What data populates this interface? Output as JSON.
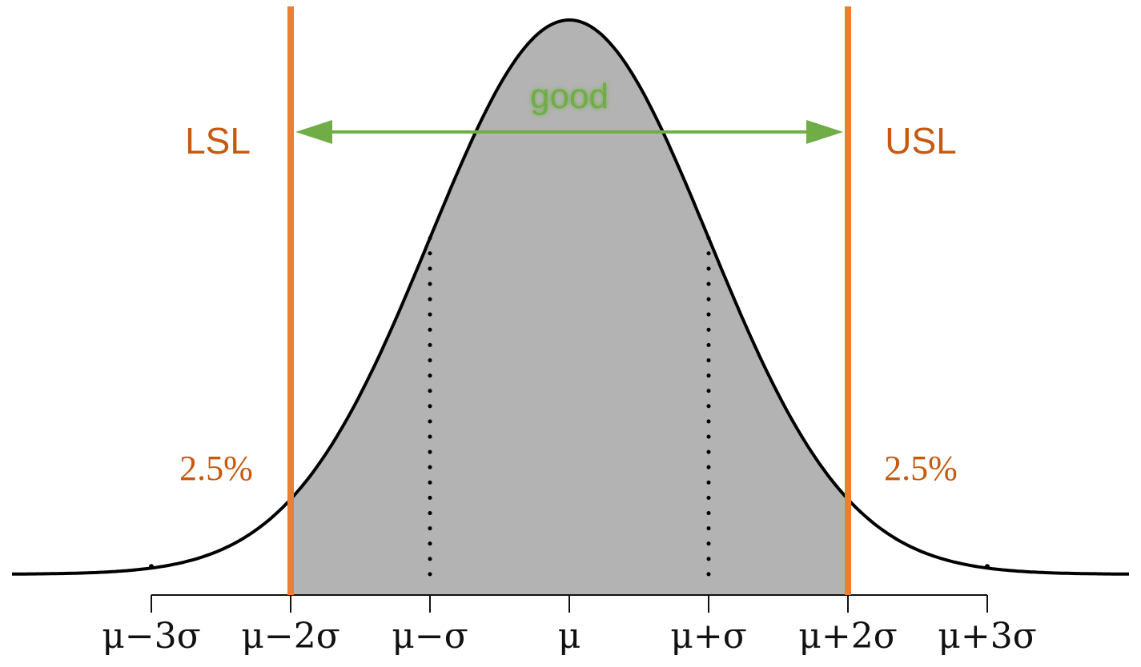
{
  "diagram": {
    "type": "normal-distribution-spec-limits",
    "labels": {
      "lsl": "LSL",
      "usl": "USL",
      "good": "good",
      "left_tail_pct": "2.5%",
      "right_tail_pct": "2.5%"
    },
    "ticks": [
      {
        "sigma": -3,
        "label": "μ−3σ"
      },
      {
        "sigma": -2,
        "label": "μ−2σ"
      },
      {
        "sigma": -1,
        "label": "μ−σ"
      },
      {
        "sigma": 0,
        "label": "μ"
      },
      {
        "sigma": 1,
        "label": "μ+σ"
      },
      {
        "sigma": 2,
        "label": "μ+2σ"
      },
      {
        "sigma": 3,
        "label": "μ+3σ"
      }
    ],
    "spec_limits_sigma": [
      -2,
      2
    ],
    "dotted_guides_sigma": [
      -1,
      1
    ],
    "colors": {
      "limit": "#ed7d31",
      "limit_text": "#c55a11",
      "good": "#70ad47",
      "fill": "#b3b3b3",
      "curve": "#000000"
    }
  }
}
